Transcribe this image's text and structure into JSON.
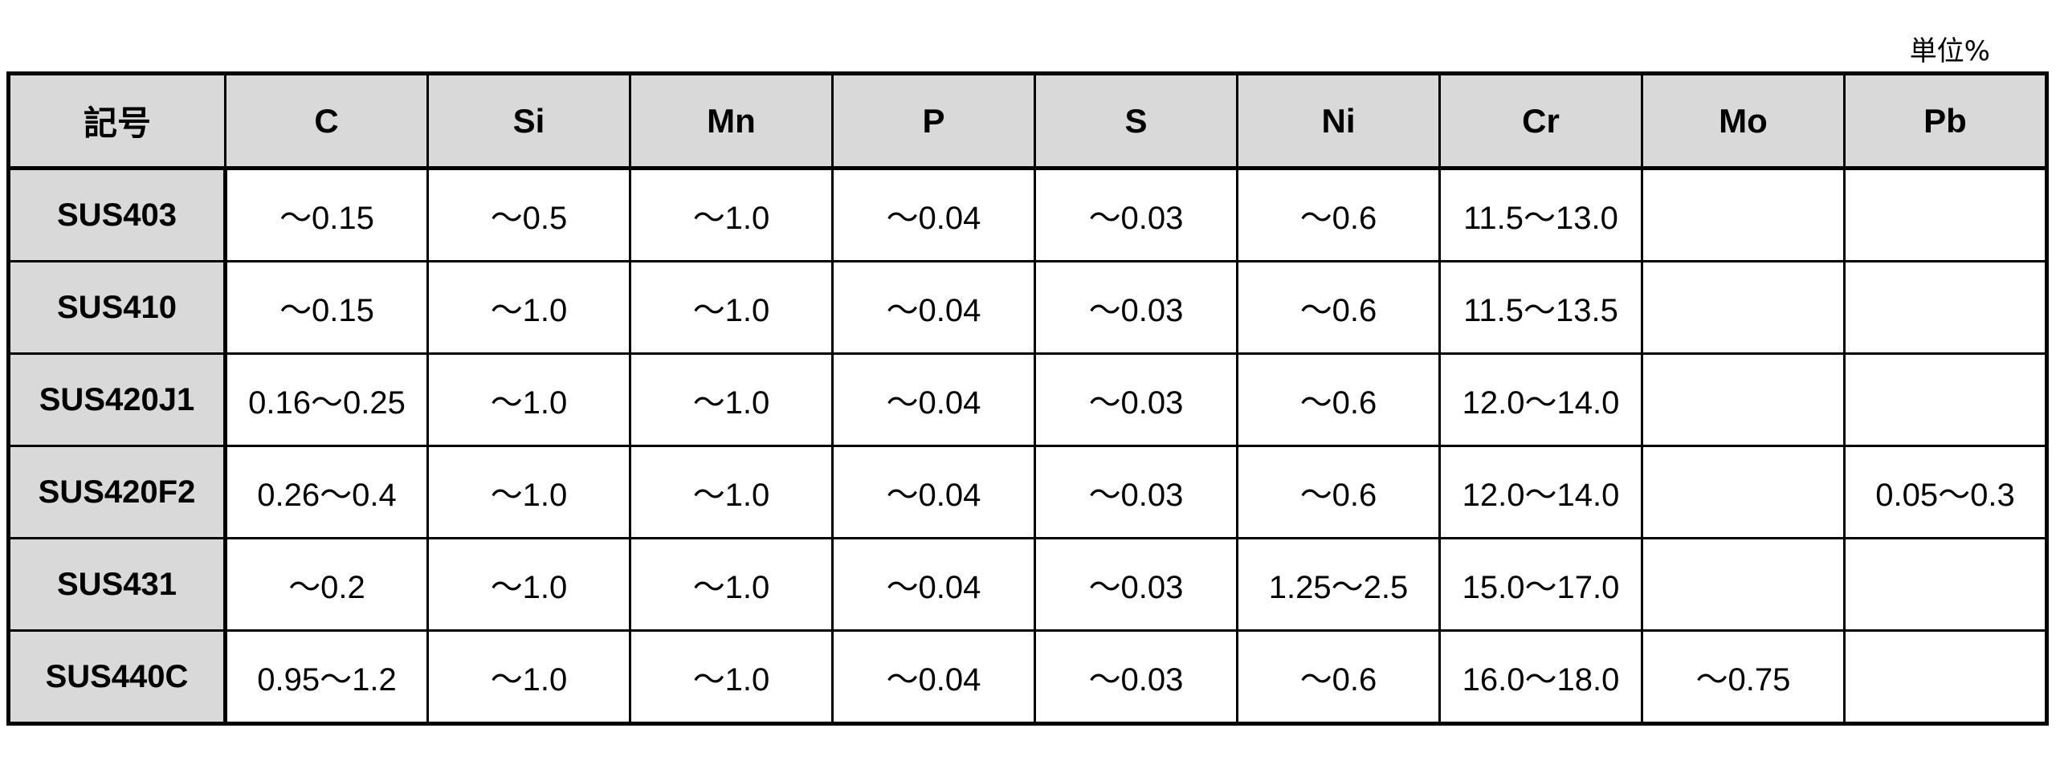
{
  "unit_label": "単位%",
  "table": {
    "headers": [
      "記号",
      "C",
      "Si",
      "Mn",
      "P",
      "S",
      "Ni",
      "Cr",
      "Mo",
      "Pb"
    ],
    "rows": [
      [
        "SUS403",
        "～0.15",
        "～0.5",
        "～1.0",
        "～0.04",
        "～0.03",
        "～0.6",
        "11.5～13.0",
        "",
        ""
      ],
      [
        "SUS410",
        "～0.15",
        "～1.0",
        "～1.0",
        "～0.04",
        "～0.03",
        "～0.6",
        "11.5～13.5",
        "",
        ""
      ],
      [
        "SUS420J1",
        "0.16～0.25",
        "～1.0",
        "～1.0",
        "～0.04",
        "～0.03",
        "～0.6",
        "12.0～14.0",
        "",
        ""
      ],
      [
        "SUS420F2",
        "0.26～0.4",
        "～1.0",
        "～1.0",
        "～0.04",
        "～0.03",
        "～0.6",
        "12.0～14.0",
        "",
        "0.05～0.3"
      ],
      [
        "SUS431",
        "～0.2",
        "～1.0",
        "～1.0",
        "～0.04",
        "～0.03",
        "1.25～2.5",
        "15.0～17.0",
        "",
        ""
      ],
      [
        "SUS440C",
        "0.95～1.2",
        "～1.0",
        "～1.0",
        "～0.04",
        "～0.03",
        "～0.6",
        "16.0～18.0",
        "～0.75",
        ""
      ]
    ]
  },
  "colors": {
    "header_bg": "#d9d9d9",
    "border": "#000000"
  }
}
